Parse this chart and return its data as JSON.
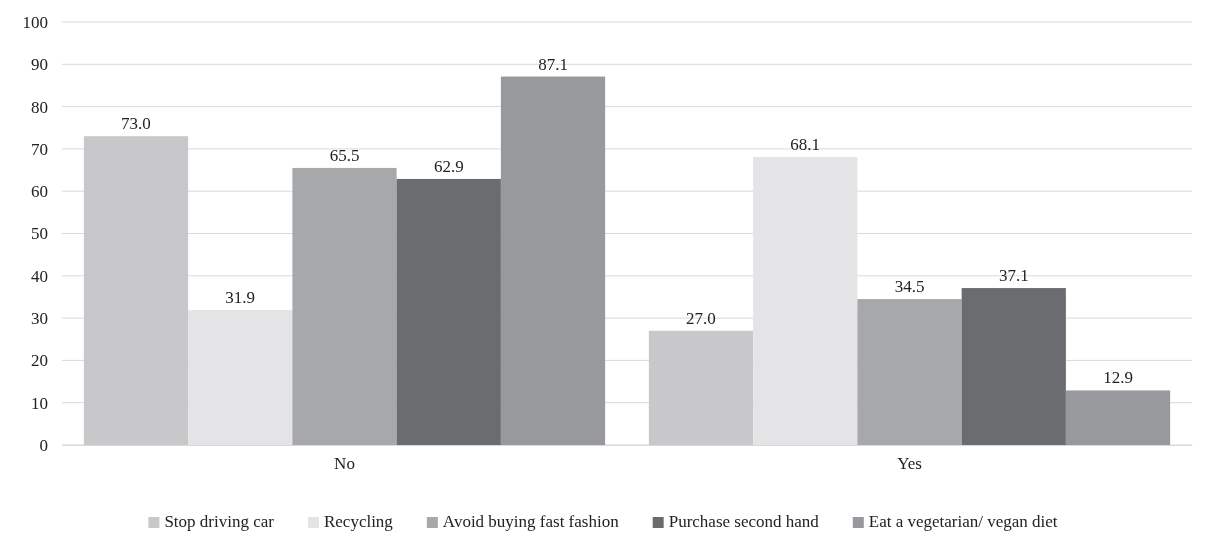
{
  "chart_data": {
    "type": "bar",
    "categories": [
      "No",
      "Yes"
    ],
    "series": [
      {
        "name": "Stop driving car",
        "color": "#c8c8ca",
        "values": [
          73.0,
          27.0
        ]
      },
      {
        "name": "Recycling",
        "color": "#e4e4e6",
        "values": [
          31.9,
          68.1
        ]
      },
      {
        "name": "Avoid buying fast fashion",
        "color": "#a7a8aa",
        "values": [
          65.5,
          34.5
        ]
      },
      {
        "name": "Purchase second hand",
        "color": "#6b6c6f",
        "values": [
          62.9,
          37.1
        ]
      },
      {
        "name": "Eat a vegetarian/ vegan diet",
        "color": "#98999c",
        "values": [
          87.1,
          12.9
        ]
      }
    ],
    "value_labels": [
      [
        "73.0",
        "27.0"
      ],
      [
        "31.9",
        "68.1"
      ],
      [
        "65.5",
        "34.5"
      ],
      [
        "62.9",
        "37.1"
      ],
      [
        "87.1",
        "12.9"
      ]
    ],
    "ylim": [
      0,
      100
    ],
    "yticks": [
      0,
      10,
      20,
      30,
      40,
      50,
      60,
      70,
      80,
      90,
      100
    ],
    "grid": "y",
    "legend": "bottom"
  }
}
